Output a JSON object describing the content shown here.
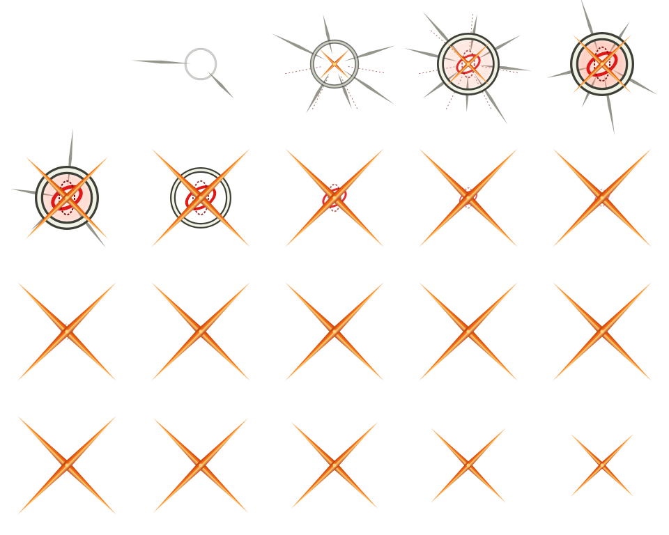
{
  "sprite_sheet": {
    "effect": "x-slash-hit",
    "columns": 5,
    "rows": 4,
    "colors": {
      "ring_outer": "#3c4036",
      "ring_light": "#f2f2e6",
      "slash_dark": "#b8360a",
      "slash_mid": "#ff7a18",
      "slash_light": "#ffd27a",
      "core_red": "#e01818",
      "core_dark": "#7a0a0a",
      "spike": "#8a8a80"
    },
    "frames": [
      {
        "index": 1,
        "ring": 0,
        "ring_width": 0,
        "glow": 0,
        "cross": 0,
        "core": 0,
        "spikes": 0,
        "streaks": 0
      },
      {
        "index": 2,
        "ring": 0.3,
        "ring_width": 3,
        "glow": 0,
        "cross": 0,
        "core": 0,
        "spikes": 2,
        "streaks": 0
      },
      {
        "index": 3,
        "ring": 0.7,
        "ring_width": 6,
        "glow": 0,
        "cross": 0.15,
        "core": 0,
        "spikes": 6,
        "streaks": 4
      },
      {
        "index": 4,
        "ring": 1,
        "ring_width": 10,
        "glow": 0.4,
        "cross": 0.3,
        "core": 0.6,
        "spikes": 8,
        "streaks": 6
      },
      {
        "index": 5,
        "ring": 1,
        "ring_width": 12,
        "glow": 0.8,
        "cross": 0.5,
        "core": 0.9,
        "spikes": 6,
        "streaks": 0
      },
      {
        "index": 6,
        "ring": 1,
        "ring_width": 12,
        "glow": 0.6,
        "cross": 0.8,
        "core": 1,
        "spikes": 4,
        "streaks": 0
      },
      {
        "index": 7,
        "ring": 1,
        "ring_width": 8,
        "glow": 0,
        "cross": 1,
        "core": 0.8,
        "spikes": 0,
        "streaks": 0
      },
      {
        "index": 8,
        "ring": 0,
        "ring_width": 0,
        "glow": 0,
        "cross": 1,
        "core": 0.6,
        "spikes": 0,
        "streaks": 0
      },
      {
        "index": 9,
        "ring": 0,
        "ring_width": 0,
        "glow": 0,
        "cross": 1,
        "core": 0.4,
        "spikes": 0,
        "streaks": 0
      },
      {
        "index": 10,
        "ring": 0,
        "ring_width": 0,
        "glow": 0,
        "cross": 1,
        "core": 0.3,
        "spikes": 0,
        "streaks": 0
      },
      {
        "index": 11,
        "ring": 0,
        "ring_width": 0,
        "glow": 0,
        "cross": 1,
        "core": 0.25,
        "spikes": 0,
        "streaks": 0
      },
      {
        "index": 12,
        "ring": 0,
        "ring_width": 0,
        "glow": 0,
        "cross": 1,
        "core": 0.15,
        "spikes": 0,
        "streaks": 0
      },
      {
        "index": 13,
        "ring": 0,
        "ring_width": 0,
        "glow": 0,
        "cross": 1,
        "core": 0.1,
        "spikes": 0,
        "streaks": 0
      },
      {
        "index": 14,
        "ring": 0,
        "ring_width": 0,
        "glow": 0,
        "cross": 1,
        "core": 0.05,
        "spikes": 0,
        "streaks": 0
      },
      {
        "index": 15,
        "ring": 0,
        "ring_width": 0,
        "glow": 0,
        "cross": 1,
        "core": 0.03,
        "spikes": 0,
        "streaks": 0
      },
      {
        "index": 16,
        "ring": 0,
        "ring_width": 0,
        "glow": 0,
        "cross": 1,
        "core": 0,
        "spikes": 0,
        "streaks": 0
      },
      {
        "index": 17,
        "ring": 0,
        "ring_width": 0,
        "glow": 0,
        "cross": 0.95,
        "core": 0,
        "spikes": 0,
        "streaks": 0
      },
      {
        "index": 18,
        "ring": 0,
        "ring_width": 0,
        "glow": 0,
        "cross": 0.85,
        "core": 0,
        "spikes": 0,
        "streaks": 0
      },
      {
        "index": 19,
        "ring": 0,
        "ring_width": 0,
        "glow": 0,
        "cross": 0.7,
        "core": 0,
        "spikes": 0,
        "streaks": 0
      },
      {
        "index": 20,
        "ring": 0,
        "ring_width": 0,
        "glow": 0,
        "cross": 0.55,
        "core": 0,
        "spikes": 0,
        "streaks": 0
      }
    ]
  }
}
